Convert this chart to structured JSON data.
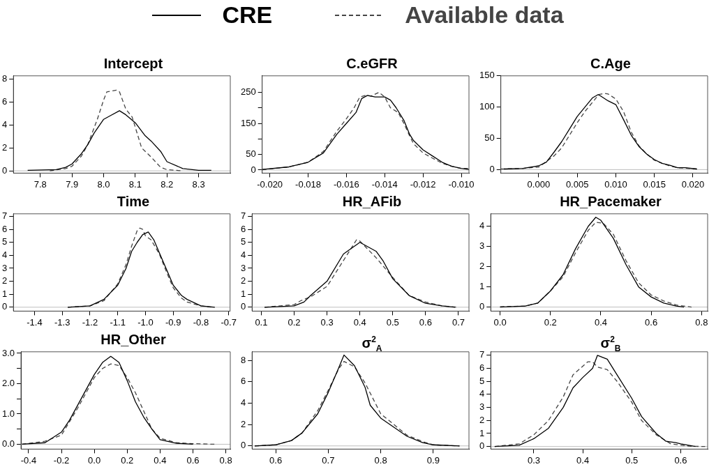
{
  "chart_data": [
    {
      "type": "line",
      "title": "Intercept",
      "legend": "top",
      "xlim": [
        7.715,
        8.4
      ],
      "xticks": [
        7.8,
        7.9,
        {
          "value": 8,
          "label": "8.0"
        },
        8.1,
        8.2,
        8.3
      ],
      "ylim": [
        -0.2,
        8.3
      ],
      "yticks": [
        0,
        2,
        4,
        6,
        8
      ],
      "ref_lines": [
        {
          "axis": "y",
          "value": 0,
          "color": "#bebebe"
        }
      ],
      "series": [
        {
          "name": "CRE",
          "color": "#000000",
          "line_style": "solid",
          "x": [
            7.76,
            7.85,
            7.88,
            7.9,
            7.93,
            7.95,
            7.97,
            8.0,
            8.02,
            8.05,
            8.07,
            8.1,
            8.13,
            8.15,
            8.18,
            8.2,
            8.25,
            8.3,
            8.34
          ],
          "values": [
            0.05,
            0.1,
            0.3,
            0.6,
            1.5,
            2.3,
            3.3,
            4.5,
            4.8,
            5.25,
            4.9,
            4.2,
            3.1,
            2.6,
            1.7,
            0.8,
            0.2,
            0.05,
            0.04
          ]
        },
        {
          "name": "Available data",
          "color": "#444444",
          "line_style": "dashed",
          "x": [
            7.83,
            7.88,
            7.9,
            7.93,
            7.95,
            7.98,
            8.0,
            8.01,
            8.04,
            8.05,
            8.07,
            8.09,
            8.1,
            8.12,
            8.15,
            8.18,
            8.2,
            8.25
          ],
          "values": [
            0,
            0.2,
            0.4,
            1.3,
            2.3,
            4.5,
            6.2,
            6.9,
            7.05,
            6.9,
            5.4,
            4.7,
            3.8,
            2.0,
            1.2,
            0.3,
            0.1,
            0
          ]
        }
      ]
    },
    {
      "type": "line",
      "title": "C.eGFR",
      "xlim": [
        -0.0204,
        -0.0096
      ],
      "xticks": [
        {
          "value": -0.02,
          "label": "-0.020"
        },
        -0.018,
        -0.016,
        -0.014,
        -0.012,
        {
          "value": -0.01,
          "label": "-0.010"
        }
      ],
      "ylim": [
        -10,
        303
      ],
      "yticks": [
        0,
        50,
        {
          "value": 100,
          "label": null
        },
        150,
        {
          "value": 200,
          "label": null
        },
        250
      ],
      "ref_lines": [
        {
          "axis": "y",
          "value": 0,
          "color": "#bebebe"
        }
      ],
      "series": [
        {
          "color": "#000000",
          "line_style": "solid",
          "x": [
            -0.0204,
            -0.019,
            -0.018,
            -0.0172,
            -0.0165,
            -0.016,
            -0.0155,
            -0.0152,
            -0.0149,
            -0.0145,
            -0.014,
            -0.0137,
            -0.0134,
            -0.013,
            -0.0127,
            -0.0125,
            -0.012,
            -0.0115,
            -0.011,
            -0.0105,
            -0.01,
            -0.0096
          ],
          "values": [
            2,
            10,
            25,
            55,
            115,
            150,
            185,
            230,
            240,
            235,
            235,
            225,
            200,
            160,
            115,
            95,
            65,
            45,
            25,
            12,
            5,
            2
          ]
        },
        {
          "color": "#444444",
          "line_style": "dashed",
          "x": [
            -0.0204,
            -0.019,
            -0.018,
            -0.0172,
            -0.0165,
            -0.016,
            -0.0156,
            -0.0153,
            -0.015,
            -0.0147,
            -0.0143,
            -0.014,
            -0.0137,
            -0.0133,
            -0.013,
            -0.0127,
            -0.0125,
            -0.012,
            -0.0115,
            -0.011,
            -0.0105,
            -0.01,
            -0.0096
          ],
          "values": [
            1,
            10,
            25,
            60,
            125,
            165,
            200,
            235,
            240,
            238,
            250,
            235,
            200,
            185,
            150,
            110,
            85,
            55,
            38,
            22,
            12,
            5,
            5
          ]
        }
      ]
    },
    {
      "type": "line",
      "title": "C.Age",
      "xlim": [
        -0.0049,
        0.0219
      ],
      "xticks": [
        {
          "value": 0,
          "label": "0.000"
        },
        {
          "value": 0.005,
          "label": "0.005"
        },
        {
          "value": 0.01,
          "label": "0.010"
        },
        {
          "value": 0.015,
          "label": "0.015"
        },
        {
          "value": 0.02,
          "label": "0.020"
        }
      ],
      "ylim": [
        -5.6,
        150
      ],
      "yticks": [
        0,
        50,
        100,
        150
      ],
      "ref_lines": [
        {
          "axis": "y",
          "value": 0,
          "color": "#bebebe"
        }
      ],
      "series": [
        {
          "color": "#000000",
          "line_style": "solid",
          "x": [
            -0.0045,
            -0.002,
            0,
            0.001,
            0.002,
            0.003,
            0.004,
            0.005,
            0.006,
            0.007,
            0.0077,
            0.008,
            0.009,
            0.01,
            0.011,
            0.012,
            0.013,
            0.014,
            0.015,
            0.016,
            0.017,
            0.018,
            0.019,
            0.0205
          ],
          "values": [
            1,
            2,
            6,
            12,
            28,
            45,
            65,
            85,
            100,
            115,
            120,
            118,
            110,
            104,
            80,
            55,
            37,
            25,
            16,
            10,
            7,
            3,
            3,
            1
          ]
        },
        {
          "color": "#444444",
          "line_style": "dashed",
          "x": [
            -0.0049,
            -0.002,
            0,
            0.002,
            0.003,
            0.004,
            0.005,
            0.006,
            0.007,
            0.0078,
            0.0085,
            0.009,
            0.01,
            0.011,
            0.012,
            0.013,
            0.014,
            0.015,
            0.016,
            0.017,
            0.018,
            0.0205
          ],
          "values": [
            1,
            2,
            4,
            22,
            35,
            55,
            75,
            93,
            108,
            120,
            122,
            121,
            113,
            93,
            60,
            38,
            25,
            15,
            10,
            6,
            3,
            1
          ]
        }
      ]
    },
    {
      "type": "line",
      "title": "Time",
      "xlim": [
        -1.476,
        -0.695
      ],
      "xticks": [
        -1.4,
        -1.3,
        -1.2,
        -1.1,
        {
          "value": -1,
          "label": "-1.0"
        },
        -0.9,
        -0.8,
        -0.7
      ],
      "ylim": [
        -0.3,
        7.2
      ],
      "yticks": [
        0,
        1,
        2,
        3,
        4,
        5,
        6,
        7
      ],
      "ref_lines": [
        {
          "axis": "y",
          "value": 0,
          "color": "#bebebe"
        }
      ],
      "series": [
        {
          "color": "#000000",
          "line_style": "solid",
          "x": [
            -1.28,
            -1.2,
            -1.15,
            -1.1,
            -1.07,
            -1.05,
            -1.03,
            -1.01,
            -0.99,
            -0.97,
            -0.95,
            -0.92,
            -0.9,
            -0.87,
            -0.85,
            -0.8,
            -0.75
          ],
          "values": [
            0,
            0.1,
            0.6,
            1.7,
            3.0,
            4.3,
            5.0,
            5.6,
            5.8,
            5.2,
            4.2,
            2.7,
            1.7,
            0.9,
            0.6,
            0.1,
            0
          ]
        },
        {
          "color": "#444444",
          "line_style": "dashed",
          "x": [
            -1.28,
            -1.2,
            -1.15,
            -1.1,
            -1.07,
            -1.05,
            -1.03,
            -1.02,
            -1.01,
            -1.0,
            -0.98,
            -0.95,
            -0.92,
            -0.9,
            -0.87,
            -0.85,
            -0.8,
            -0.76
          ],
          "values": [
            0,
            0.1,
            0.5,
            1.8,
            3.3,
            4.7,
            5.9,
            6.1,
            6.0,
            5.5,
            5.2,
            4.1,
            2.5,
            1.5,
            0.7,
            0.4,
            0.1,
            0
          ]
        }
      ]
    },
    {
      "type": "line",
      "title": "HR_AFib",
      "xlim": [
        0.072,
        0.732
      ],
      "xticks": [
        0.1,
        0.2,
        0.3,
        0.4,
        0.5,
        0.6,
        0.7
      ],
      "ylim": [
        -0.3,
        7.2
      ],
      "yticks": [
        0,
        1,
        2,
        3,
        4,
        5,
        6,
        7
      ],
      "ref_lines": [
        {
          "axis": "y",
          "value": 0,
          "color": "#bebebe"
        }
      ],
      "series": [
        {
          "color": "#000000",
          "line_style": "solid",
          "x": [
            0.11,
            0.2,
            0.23,
            0.25,
            0.3,
            0.35,
            0.4,
            0.45,
            0.47,
            0.5,
            0.55,
            0.6,
            0.65,
            0.69
          ],
          "values": [
            0,
            0.1,
            0.4,
            0.9,
            2.0,
            4.1,
            5.0,
            4.3,
            3.6,
            2.2,
            0.9,
            0.3,
            0.1,
            0
          ]
        },
        {
          "color": "#444444",
          "line_style": "dashed",
          "x": [
            0.11,
            0.2,
            0.22,
            0.25,
            0.3,
            0.35,
            0.39,
            0.4,
            0.45,
            0.5,
            0.55,
            0.6,
            0.65,
            0.7
          ],
          "values": [
            0,
            0.2,
            0.5,
            0.8,
            1.6,
            3.6,
            5.2,
            5.1,
            3.8,
            2.3,
            0.9,
            0.4,
            0.1,
            0
          ]
        }
      ]
    },
    {
      "type": "line",
      "title": "HR_Pacemaker",
      "xlim": [
        -0.037,
        0.824
      ],
      "xticks": [
        {
          "value": 0,
          "label": "0.0"
        },
        0.2,
        0.4,
        0.6,
        0.8
      ],
      "ylim": [
        -0.2,
        4.62
      ],
      "yticks": [
        0,
        1,
        2,
        3,
        4
      ],
      "ref_lines": [
        {
          "axis": "y",
          "value": 0,
          "color": "#bebebe"
        }
      ],
      "series": [
        {
          "color": "#000000",
          "line_style": "solid",
          "x": [
            0,
            0.1,
            0.15,
            0.2,
            0.25,
            0.3,
            0.35,
            0.38,
            0.4,
            0.45,
            0.5,
            0.55,
            0.6,
            0.65,
            0.7,
            0.73
          ],
          "values": [
            0,
            0.05,
            0.2,
            0.8,
            1.6,
            2.9,
            4.0,
            4.45,
            4.3,
            3.4,
            2.1,
            1.0,
            0.5,
            0.2,
            0.05,
            0
          ]
        },
        {
          "color": "#444444",
          "line_style": "dashed",
          "x": [
            0,
            0.1,
            0.15,
            0.2,
            0.25,
            0.3,
            0.35,
            0.38,
            0.41,
            0.45,
            0.5,
            0.55,
            0.6,
            0.65,
            0.7,
            0.76
          ],
          "values": [
            0.02,
            0.05,
            0.2,
            0.8,
            1.5,
            2.7,
            3.8,
            4.2,
            4.15,
            3.6,
            2.3,
            1.2,
            0.6,
            0.3,
            0.1,
            0
          ]
        }
      ]
    },
    {
      "type": "line",
      "title": "HR_Other",
      "xlim": [
        -0.446,
        0.827
      ],
      "xticks": [
        -0.4,
        -0.2,
        {
          "value": 0,
          "label": "0.0"
        },
        0.2,
        0.4,
        0.6,
        0.8
      ],
      "ylim": [
        -0.16,
        3.05
      ],
      "yticks": [
        {
          "value": 0,
          "label": "0.0"
        },
        {
          "value": 0.5,
          "label": null
        },
        {
          "value": 1,
          "label": "1.0"
        },
        {
          "value": 1.5,
          "label": null
        },
        {
          "value": 2,
          "label": "2.0"
        },
        {
          "value": 2.5,
          "label": null
        },
        {
          "value": 3,
          "label": "3.0"
        }
      ],
      "ref_lines": [
        {
          "axis": "y",
          "value": 0,
          "color": "#bebebe"
        }
      ],
      "series": [
        {
          "color": "#000000",
          "line_style": "solid",
          "x": [
            -0.44,
            -0.3,
            -0.2,
            -0.15,
            -0.1,
            0,
            0.05,
            0.1,
            0.15,
            0.2,
            0.25,
            0.3,
            0.35,
            0.4,
            0.5,
            0.6
          ],
          "values": [
            0,
            0.05,
            0.4,
            0.8,
            1.3,
            2.3,
            2.7,
            2.9,
            2.7,
            2.1,
            1.4,
            0.9,
            0.5,
            0.15,
            0.03,
            0
          ]
        },
        {
          "color": "#444444",
          "line_style": "dashed",
          "x": [
            -0.44,
            -0.3,
            -0.2,
            -0.1,
            0,
            0.05,
            0.1,
            0.15,
            0.2,
            0.25,
            0.3,
            0.35,
            0.4,
            0.5,
            0.6,
            0.73
          ],
          "values": [
            0,
            0.1,
            0.3,
            1.2,
            2.2,
            2.5,
            2.65,
            2.6,
            2.2,
            1.7,
            1.1,
            0.5,
            0.2,
            0.05,
            0.02,
            0
          ]
        }
      ]
    },
    {
      "type": "line",
      "title": "σ$^{2}$$_{A}$",
      "xlim": [
        0.555,
        0.968
      ],
      "xticks": [
        0.6,
        0.7,
        0.8,
        0.9
      ],
      "ylim": [
        -0.3,
        8.8
      ],
      "yticks": [
        0,
        2,
        4,
        6,
        8
      ],
      "ref_lines": [
        {
          "axis": "y",
          "value": 0,
          "color": "#bebebe"
        }
      ],
      "series": [
        {
          "color": "#000000",
          "line_style": "solid",
          "x": [
            0.56,
            0.6,
            0.63,
            0.65,
            0.68,
            0.7,
            0.72,
            0.73,
            0.75,
            0.77,
            0.78,
            0.8,
            0.85,
            0.88,
            0.9,
            0.95
          ],
          "values": [
            0,
            0.1,
            0.5,
            1.2,
            3.0,
            5.0,
            7.3,
            8.5,
            7.5,
            5.5,
            3.8,
            2.6,
            0.9,
            0.3,
            0.1,
            0
          ]
        },
        {
          "color": "#444444",
          "line_style": "dashed",
          "x": [
            0.56,
            0.6,
            0.63,
            0.65,
            0.68,
            0.7,
            0.72,
            0.73,
            0.75,
            0.77,
            0.8,
            0.85,
            0.88,
            0.9,
            0.95
          ],
          "values": [
            0,
            0.1,
            0.5,
            1.2,
            3.3,
            5.2,
            7.2,
            7.9,
            7.4,
            5.9,
            3.0,
            1.0,
            0.4,
            0.1,
            0
          ]
        }
      ]
    },
    {
      "type": "line",
      "title": "σ$^{2}$$_{B}$",
      "xlim": [
        0.212,
        0.655
      ],
      "xticks": [
        0.3,
        0.4,
        0.5,
        0.6
      ],
      "ylim": [
        -0.2,
        7.27
      ],
      "yticks": [
        0,
        1,
        2,
        3,
        4,
        5,
        6,
        7
      ],
      "ref_lines": [
        {
          "axis": "y",
          "value": 0,
          "color": "#bebebe"
        }
      ],
      "series": [
        {
          "color": "#000000",
          "line_style": "solid",
          "x": [
            0.22,
            0.27,
            0.3,
            0.33,
            0.36,
            0.38,
            0.4,
            0.42,
            0.43,
            0.45,
            0.47,
            0.5,
            0.52,
            0.55,
            0.57,
            0.59,
            0.6,
            0.63
          ],
          "values": [
            0,
            0.1,
            0.6,
            1.4,
            3.0,
            4.5,
            5.3,
            6.0,
            7.0,
            6.7,
            5.5,
            3.7,
            2.3,
            1.0,
            0.4,
            0.3,
            0.2,
            0
          ]
        },
        {
          "color": "#444444",
          "line_style": "dashed",
          "x": [
            0.22,
            0.27,
            0.3,
            0.33,
            0.36,
            0.38,
            0.41,
            0.42,
            0.43,
            0.45,
            0.47,
            0.5,
            0.52,
            0.55,
            0.58,
            0.62,
            0.65
          ],
          "values": [
            0,
            0.2,
            0.9,
            2.0,
            3.8,
            5.5,
            6.5,
            6.5,
            6.1,
            5.9,
            5.0,
            3.4,
            2.0,
            0.9,
            0.2,
            0.02,
            0
          ]
        }
      ]
    }
  ]
}
